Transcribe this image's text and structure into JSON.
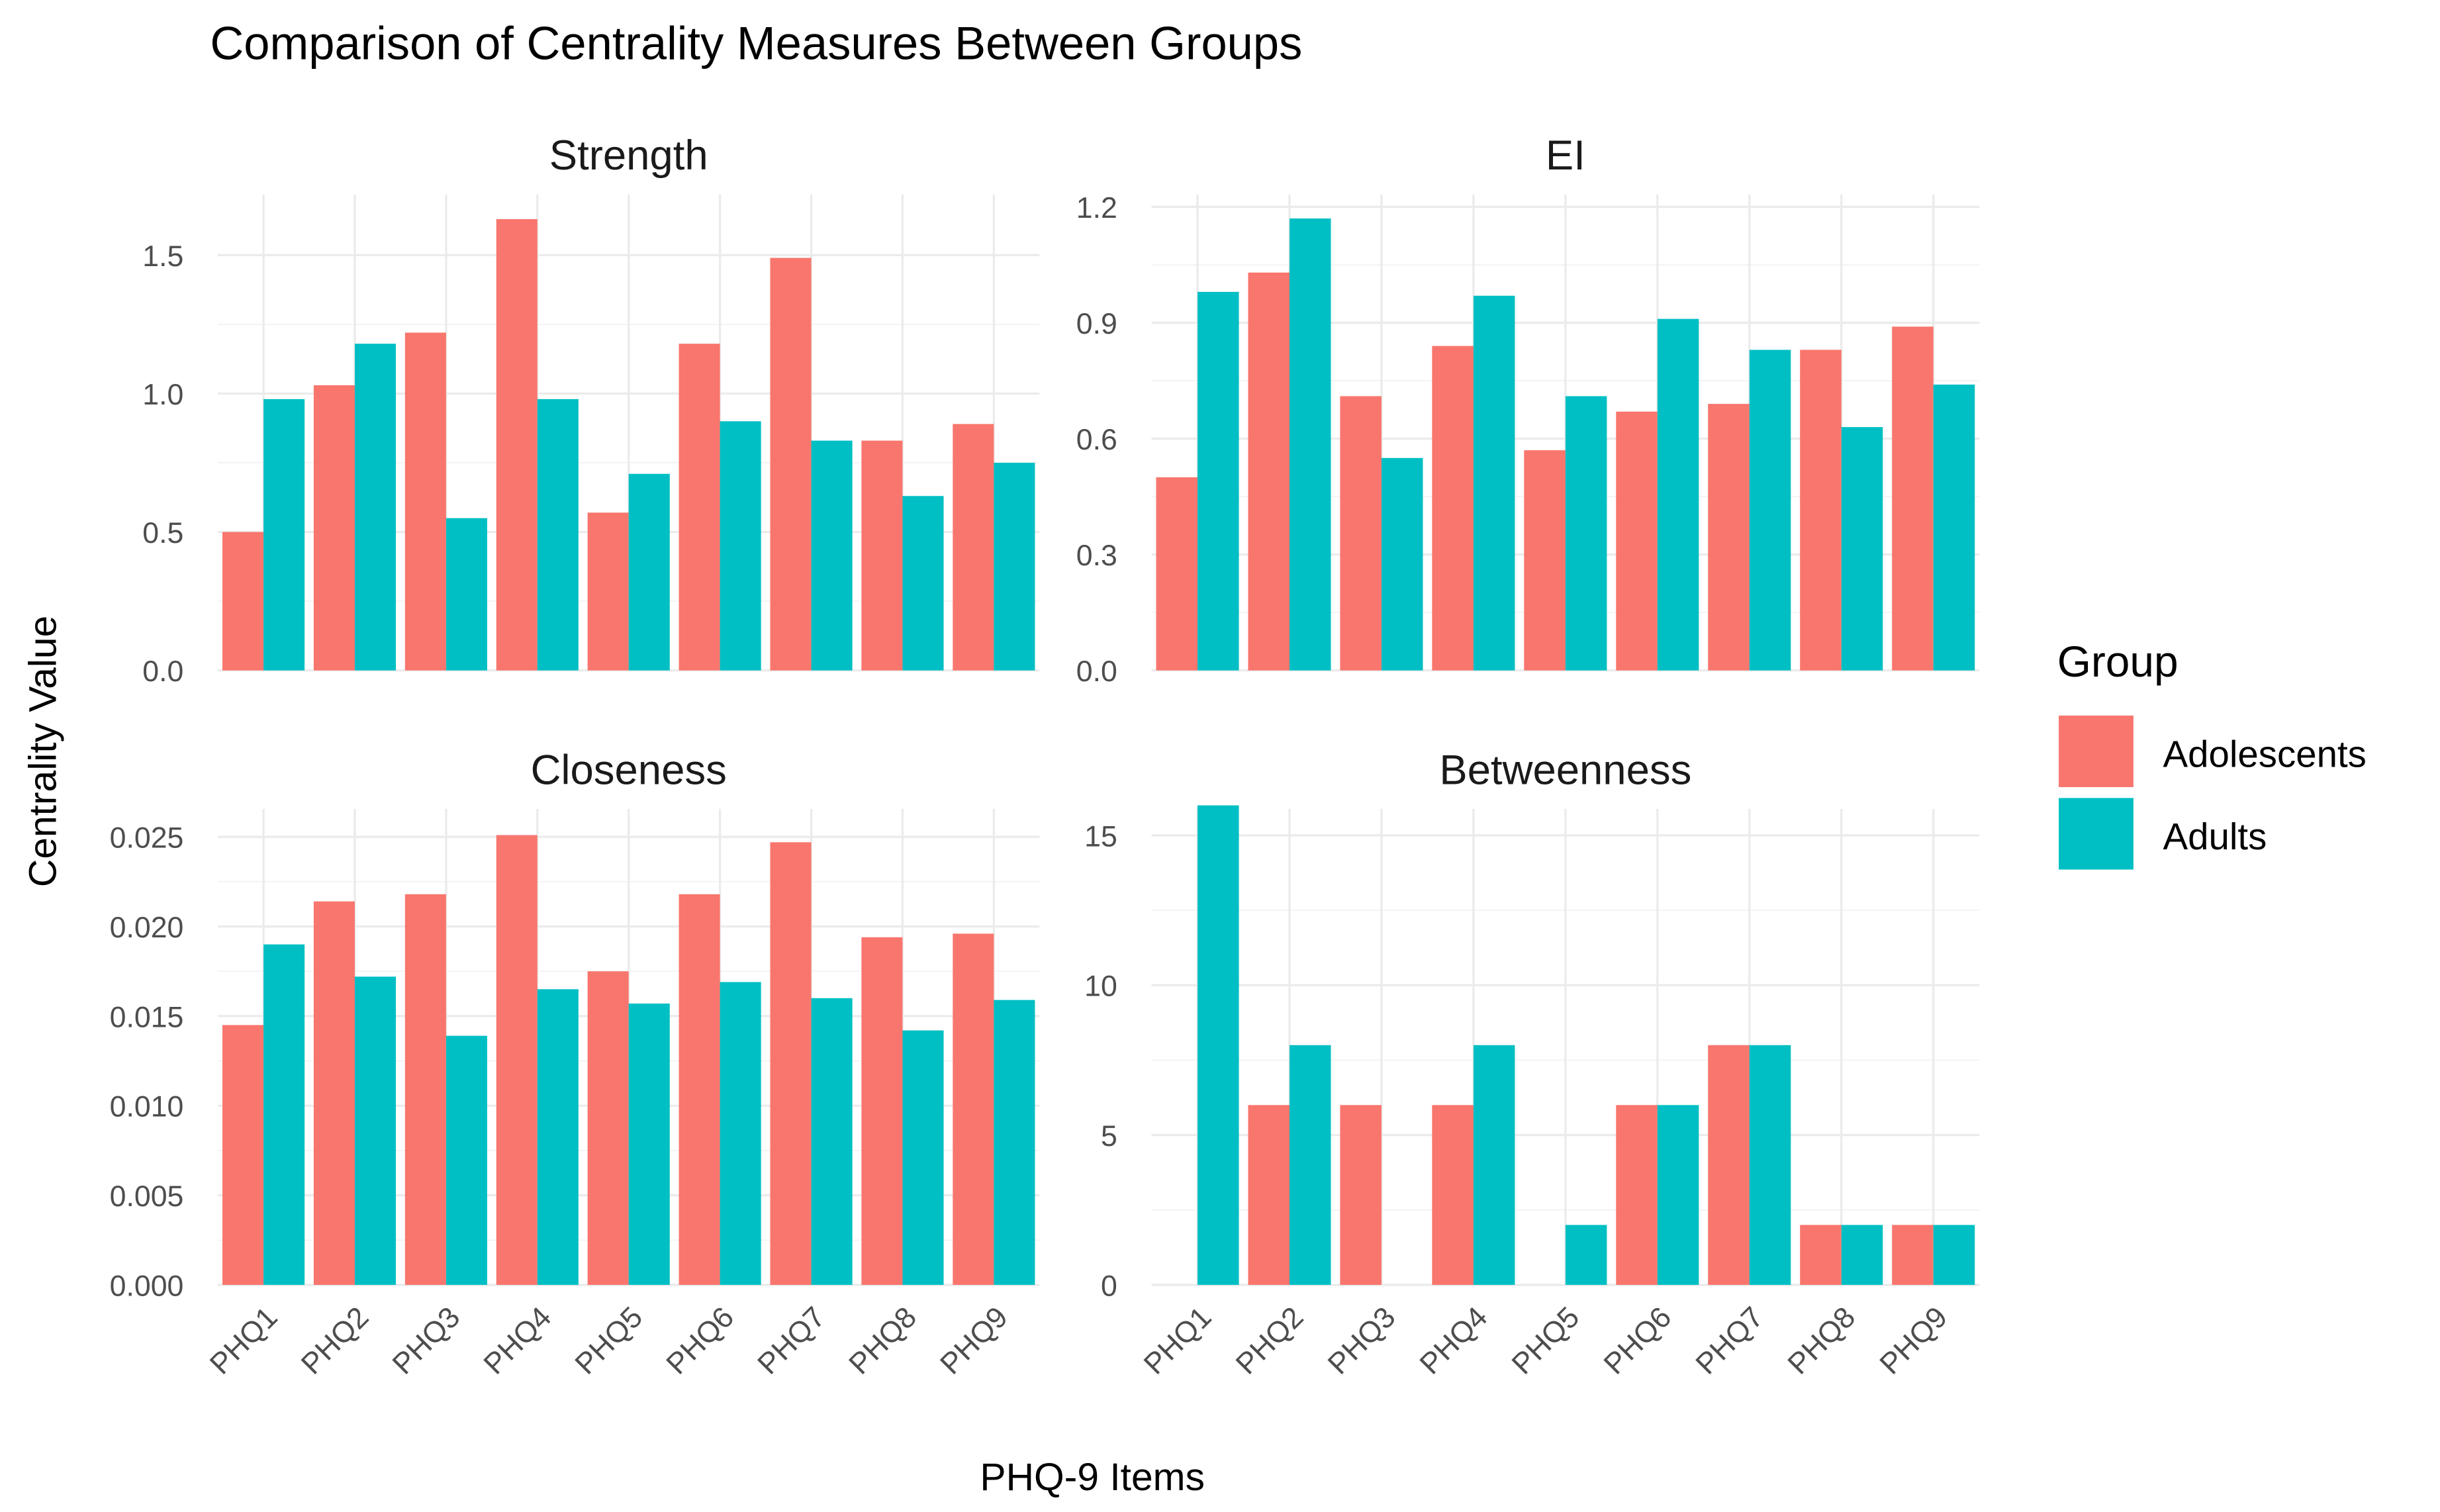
{
  "chart_data": {
    "type": "bar",
    "title": "Comparison of Centrality Measures Between Groups",
    "xlabel": "PHQ-9 Items",
    "ylabel": "Centrality Value",
    "legend": {
      "title": "Group",
      "placement": "right",
      "entries": [
        {
          "name": "Adolescents",
          "color": "#F8766D"
        },
        {
          "name": "Adults",
          "color": "#00BFC4"
        }
      ]
    },
    "categories": [
      "PHQ1",
      "PHQ2",
      "PHQ3",
      "PHQ4",
      "PHQ5",
      "PHQ6",
      "PHQ7",
      "PHQ8",
      "PHQ9"
    ],
    "grid": true,
    "panels": [
      {
        "name": "Strength",
        "ylim": [
          0,
          1.7
        ],
        "ticks": [
          0,
          0.5,
          1.0,
          1.5
        ],
        "tick_labels": [
          "0.0",
          "0.5",
          "1.0",
          "1.5"
        ],
        "series": [
          {
            "name": "Adolescents",
            "values": [
              0.5,
              1.03,
              1.22,
              1.63,
              0.57,
              1.18,
              1.49,
              0.83,
              0.89
            ]
          },
          {
            "name": "Adults",
            "values": [
              0.98,
              1.18,
              0.55,
              0.98,
              0.71,
              0.9,
              0.83,
              0.63,
              0.75
            ]
          }
        ]
      },
      {
        "name": "EI",
        "ylim": [
          0,
          1.25
        ],
        "ticks": [
          0,
          0.3,
          0.6,
          0.9,
          1.2
        ],
        "tick_labels": [
          "0.0",
          "0.3",
          "0.6",
          "0.9",
          "1.2"
        ],
        "series": [
          {
            "name": "Adolescents",
            "values": [
              0.5,
              1.03,
              0.71,
              0.84,
              0.57,
              0.67,
              0.69,
              0.83,
              0.89
            ]
          },
          {
            "name": "Adults",
            "values": [
              0.98,
              1.17,
              0.55,
              0.97,
              0.71,
              0.91,
              0.83,
              0.63,
              0.74
            ]
          }
        ]
      },
      {
        "name": "Closeness",
        "ylim": [
          0,
          0.0265
        ],
        "ticks": [
          0,
          0.005,
          0.01,
          0.015,
          0.02,
          0.025
        ],
        "tick_labels": [
          "0.000",
          "0.005",
          "0.010",
          "0.015",
          "0.020",
          "0.025"
        ],
        "series": [
          {
            "name": "Adolescents",
            "values": [
              0.0145,
              0.0214,
              0.0218,
              0.0251,
              0.0175,
              0.0218,
              0.0247,
              0.0194,
              0.0196
            ]
          },
          {
            "name": "Adults",
            "values": [
              0.019,
              0.0172,
              0.0139,
              0.0165,
              0.0157,
              0.0169,
              0.016,
              0.0142,
              0.0159
            ]
          }
        ]
      },
      {
        "name": "Betweenness",
        "ylim": [
          0,
          17
        ],
        "ticks": [
          0,
          5,
          10,
          15
        ],
        "tick_labels": [
          "0",
          "5",
          "10",
          "15"
        ],
        "series": [
          {
            "name": "Adolescents",
            "values": [
              0,
              6,
              6,
              6,
              0,
              6,
              8,
              2,
              2
            ]
          },
          {
            "name": "Adults",
            "values": [
              16,
              8,
              0,
              8,
              2,
              6,
              8,
              2,
              2
            ]
          }
        ]
      }
    ]
  }
}
